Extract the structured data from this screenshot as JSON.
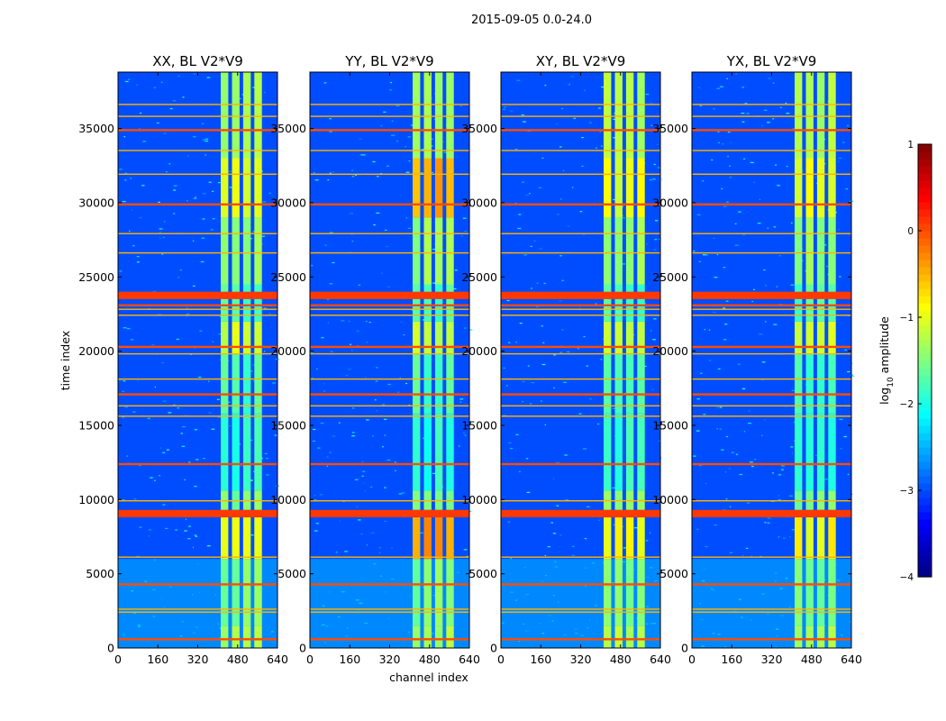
{
  "chart_data": {
    "type": "heatmap",
    "suptitle": "2015-09-05 0.0-24.0",
    "xlabel": "channel index",
    "ylabel": "time index",
    "xlim": [
      0,
      640
    ],
    "ylim": [
      0,
      38800
    ],
    "xticks": [
      0,
      160,
      320,
      480,
      640
    ],
    "yticks": [
      0,
      5000,
      10000,
      15000,
      20000,
      25000,
      30000,
      35000
    ],
    "panels": [
      {
        "title": "XX, BL V2*V9",
        "pol": "XX"
      },
      {
        "title": "YY, BL V2*V9",
        "pol": "YY"
      },
      {
        "title": "XY, BL V2*V9",
        "pol": "XY"
      },
      {
        "title": "YX, BL V2*V9",
        "pol": "YX"
      }
    ],
    "colorbar": {
      "label": "log10 amplitude",
      "label_main": "log",
      "label_sub": "10",
      "label_tail": " amplitude",
      "range": [
        -4,
        1
      ],
      "ticks": [
        "1",
        "0",
        "−1",
        "−2",
        "−3",
        "−4"
      ],
      "colormap": "jet"
    },
    "signal_band_channels": [
      405,
      585
    ],
    "strong_rfi_time_ranges": [
      [
        23500,
        24000
      ],
      [
        8800,
        9300
      ]
    ],
    "rfi_lines_time_index": [
      600,
      2400,
      2600,
      4300,
      6100,
      9900,
      12400,
      15600,
      16300,
      17100,
      18100,
      19800,
      20300,
      22400,
      22800,
      23100,
      26600,
      27900,
      29900,
      31900,
      33500,
      34900,
      35800,
      36600
    ]
  }
}
